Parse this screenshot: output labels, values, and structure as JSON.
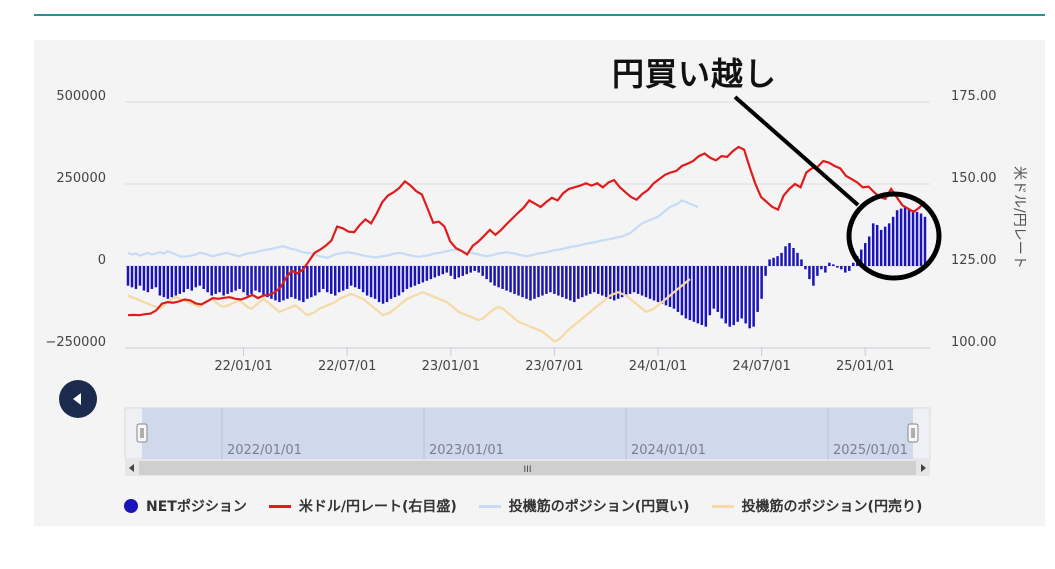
{
  "callout": {
    "text": "円買い越し"
  },
  "colors": {
    "net": "#1a13b8",
    "rate": "#e01b1b",
    "long": "#c4dcf5",
    "short": "#f7d9a6",
    "grid": "#dddddd",
    "axis_text": "#444444"
  },
  "chart_data": {
    "type": "bar+line",
    "title": "",
    "ylabel_right": "米ドル/円レート",
    "y_left_range": [
      -250000,
      500000
    ],
    "y_right_range": [
      100,
      175
    ],
    "y_left_ticks": [
      "500000",
      "250000",
      "0",
      "−250000"
    ],
    "y_left_tick_values": [
      500000,
      250000,
      0,
      -250000
    ],
    "y_right_ticks": [
      "175.00",
      "150.00",
      "125.00",
      "100.00"
    ],
    "y_right_tick_values": [
      175,
      150,
      125,
      100
    ],
    "x_ticks": [
      "22/01/01",
      "22/07/01",
      "23/01/01",
      "23/07/01",
      "24/01/01",
      "24/07/01",
      "25/01/01"
    ],
    "x_tick_weeks": [
      29,
      55,
      81,
      107,
      133,
      159,
      185
    ],
    "x_start_label_week": 0,
    "week0": "2021/06/15",
    "grid": true,
    "legend_position": "bottom",
    "series": [
      {
        "name": "NETポジション",
        "kind": "bar",
        "axis": "left",
        "values": [
          -60000,
          -65000,
          -70000,
          -60000,
          -75000,
          -80000,
          -70000,
          -65000,
          -90000,
          -95000,
          -100000,
          -95000,
          -90000,
          -85000,
          -80000,
          -70000,
          -75000,
          -65000,
          -60000,
          -70000,
          -80000,
          -90000,
          -85000,
          -80000,
          -90000,
          -85000,
          -80000,
          -75000,
          -70000,
          -80000,
          -90000,
          -85000,
          -75000,
          -80000,
          -90000,
          -95000,
          -100000,
          -105000,
          -110000,
          -105000,
          -100000,
          -95000,
          -100000,
          -105000,
          -110000,
          -100000,
          -95000,
          -90000,
          -80000,
          -70000,
          -80000,
          -85000,
          -90000,
          -80000,
          -75000,
          -70000,
          -60000,
          -65000,
          -70000,
          -80000,
          -90000,
          -95000,
          -100000,
          -110000,
          -115000,
          -110000,
          -100000,
          -95000,
          -90000,
          -80000,
          -70000,
          -65000,
          -60000,
          -55000,
          -50000,
          -45000,
          -40000,
          -35000,
          -30000,
          -25000,
          -20000,
          -30000,
          -40000,
          -35000,
          -30000,
          -25000,
          -20000,
          -15000,
          -20000,
          -30000,
          -40000,
          -50000,
          -60000,
          -65000,
          -70000,
          -75000,
          -80000,
          -85000,
          -90000,
          -95000,
          -100000,
          -105000,
          -100000,
          -95000,
          -90000,
          -85000,
          -80000,
          -85000,
          -90000,
          -95000,
          -100000,
          -105000,
          -110000,
          -100000,
          -95000,
          -90000,
          -85000,
          -80000,
          -85000,
          -90000,
          -95000,
          -100000,
          -105000,
          -100000,
          -95000,
          -90000,
          -85000,
          -80000,
          -85000,
          -90000,
          -95000,
          -100000,
          -105000,
          -110000,
          -115000,
          -120000,
          -125000,
          -130000,
          -140000,
          -150000,
          -160000,
          -165000,
          -170000,
          -175000,
          -180000,
          -185000,
          -150000,
          -130000,
          -140000,
          -160000,
          -175000,
          -185000,
          -180000,
          -170000,
          -160000,
          -175000,
          -190000,
          -185000,
          -140000,
          -100000,
          -30000,
          20000,
          25000,
          30000,
          40000,
          60000,
          70000,
          55000,
          40000,
          20000,
          -10000,
          -40000,
          -60000,
          -30000,
          -10000,
          -20000,
          10000,
          5000,
          -5000,
          -10000,
          -20000,
          -15000,
          10000,
          30000,
          50000,
          70000,
          90000,
          130000,
          125000,
          110000,
          120000,
          130000,
          150000,
          170000,
          175000,
          180000,
          175000,
          170000,
          165000,
          160000,
          150000
        ],
        "color": "#1a13b8"
      },
      {
        "name": "米ドル/円レート(右目盛)",
        "kind": "line",
        "axis": "right",
        "values": [
          110.0,
          110.1,
          110.0,
          110.3,
          110.5,
          111.5,
          113.5,
          114.0,
          113.8,
          114.2,
          114.8,
          114.5,
          113.6,
          113.3,
          114.2,
          115.2,
          115.0,
          115.3,
          115.5,
          115.0,
          114.8,
          115.4,
          116.2,
          115.2,
          116.0,
          116.2,
          117.0,
          118.5,
          121.5,
          123.5,
          122.7,
          124.0,
          126.5,
          129.0,
          130.0,
          131.2,
          132.8,
          137.0,
          136.5,
          135.5,
          135.3,
          137.5,
          139.2,
          138.0,
          141.0,
          144.5,
          146.5,
          147.5,
          148.8,
          150.8,
          149.5,
          147.8,
          146.8,
          142.5,
          138.2,
          138.5,
          137.0,
          132.5,
          130.5,
          129.6,
          128.5,
          131.2,
          132.5,
          134.2,
          136.0,
          134.5,
          136.0,
          137.8,
          139.5,
          141.2,
          142.8,
          145.0,
          144.0,
          143.0,
          144.5,
          145.8,
          145.0,
          147.2,
          148.5,
          149.0,
          149.5,
          150.2,
          149.5,
          150.2,
          149.0,
          150.5,
          151.2,
          149.0,
          147.5,
          146.0,
          145.2,
          147.0,
          148.2,
          150.2,
          151.5,
          152.8,
          153.5,
          154.0,
          155.5,
          156.2,
          157.0,
          158.5,
          159.3,
          158.0,
          157.2,
          158.5,
          158.3,
          160.0,
          161.3,
          160.5,
          155.0,
          150.0,
          146.0,
          144.5,
          143.0,
          142.2,
          146.5,
          148.5,
          150.0,
          149.0,
          153.5,
          154.8,
          155.2,
          157.0,
          156.5,
          155.5,
          154.8,
          152.5,
          151.5,
          150.5,
          149.0,
          149.2,
          147.5,
          146.0,
          145.5,
          148.5,
          146.0,
          143.5,
          142.5,
          141.5,
          142.8,
          144.5
        ],
        "color": "#e01b1b"
      },
      {
        "name": "投機筋のポジション(円買い)",
        "kind": "line",
        "axis": "left",
        "values": [
          40000,
          35000,
          38000,
          32000,
          36000,
          40000,
          35000,
          38000,
          42000,
          38000,
          45000,
          40000,
          35000,
          30000,
          28000,
          30000,
          32000,
          35000,
          40000,
          38000,
          35000,
          30000,
          32000,
          35000,
          38000,
          40000,
          35000,
          32000,
          30000,
          35000,
          38000,
          40000,
          42000,
          45000,
          48000,
          50000,
          52000,
          55000,
          58000,
          60000,
          56000,
          52000,
          50000,
          45000,
          42000,
          40000,
          38000,
          35000,
          30000,
          28000,
          25000,
          30000,
          35000,
          38000,
          40000,
          42000,
          40000,
          38000,
          35000,
          32000,
          30000,
          28000,
          26000,
          28000,
          30000,
          32000,
          35000,
          38000,
          40000,
          38000,
          35000,
          32000,
          30000,
          28000,
          30000,
          32000,
          35000,
          38000,
          40000,
          42000,
          45000,
          48000,
          50000,
          48000,
          45000,
          42000,
          40000,
          38000,
          35000,
          32000,
          30000,
          32000,
          35000,
          38000,
          40000,
          42000,
          40000,
          38000,
          35000,
          32000,
          30000,
          32000,
          35000,
          38000,
          40000,
          42000,
          45000,
          48000,
          50000,
          52000,
          55000,
          58000,
          60000,
          62000,
          65000,
          68000,
          70000,
          72000,
          75000,
          78000,
          80000,
          82000,
          85000,
          88000,
          90000,
          95000,
          100000,
          110000,
          120000,
          130000,
          135000,
          140000,
          145000,
          150000,
          160000,
          170000,
          180000,
          185000,
          190000,
          200000,
          195000,
          190000,
          185000,
          180000
        ],
        "color": "#c4dcf5"
      },
      {
        "name": "投機筋のポジション(円売り)",
        "kind": "line",
        "axis": "left",
        "values": [
          -90000,
          -95000,
          -100000,
          -105000,
          -110000,
          -115000,
          -120000,
          -125000,
          -130000,
          -120000,
          -110000,
          -100000,
          -95000,
          -100000,
          -105000,
          -110000,
          -115000,
          -120000,
          -125000,
          -115000,
          -105000,
          -100000,
          -110000,
          -120000,
          -125000,
          -120000,
          -115000,
          -110000,
          -105000,
          -115000,
          -125000,
          -130000,
          -120000,
          -110000,
          -100000,
          -110000,
          -120000,
          -130000,
          -140000,
          -135000,
          -130000,
          -125000,
          -120000,
          -130000,
          -140000,
          -150000,
          -145000,
          -140000,
          -130000,
          -125000,
          -120000,
          -115000,
          -110000,
          -100000,
          -95000,
          -90000,
          -85000,
          -90000,
          -95000,
          -100000,
          -110000,
          -120000,
          -130000,
          -140000,
          -150000,
          -145000,
          -140000,
          -130000,
          -120000,
          -110000,
          -100000,
          -95000,
          -90000,
          -85000,
          -80000,
          -85000,
          -90000,
          -95000,
          -100000,
          -105000,
          -110000,
          -120000,
          -130000,
          -140000,
          -145000,
          -150000,
          -155000,
          -160000,
          -165000,
          -160000,
          -150000,
          -140000,
          -130000,
          -125000,
          -130000,
          -140000,
          -150000,
          -160000,
          -170000,
          -175000,
          -180000,
          -185000,
          -190000,
          -195000,
          -200000,
          -210000,
          -220000,
          -230000,
          -225000,
          -215000,
          -200000,
          -190000,
          -180000,
          -170000,
          -160000,
          -150000,
          -140000,
          -130000,
          -120000,
          -110000,
          -100000,
          -90000,
          -85000,
          -80000,
          -85000,
          -90000,
          -100000,
          -110000,
          -120000,
          -130000,
          -140000,
          -135000,
          -130000,
          -120000,
          -110000,
          -100000,
          -90000,
          -80000,
          -70000,
          -60000,
          -50000,
          -40000
        ],
        "color": "#f7d9a6"
      }
    ],
    "annotation": "円買い越し"
  },
  "navigator": {
    "labels": [
      "2022/01/01",
      "2023/01/01",
      "2024/01/01",
      "2025/01/01"
    ],
    "scroll_grip": "III"
  },
  "legend": {
    "items": [
      {
        "label": "NETポジション",
        "color": "#1a13b8",
        "kind": "dot"
      },
      {
        "label": "米ドル/円レート(右目盛)",
        "color": "#e01b1b",
        "kind": "line"
      },
      {
        "label": "投機筋のポジション(円買い)",
        "color": "#c4dcf5",
        "kind": "line"
      },
      {
        "label": "投機筋のポジション(円売り)",
        "color": "#f7d9a6",
        "kind": "line"
      }
    ]
  }
}
